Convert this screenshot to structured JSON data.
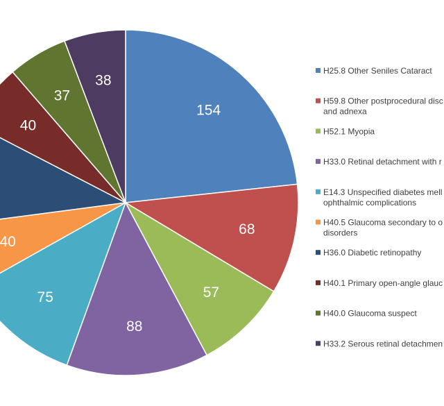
{
  "chart_data": {
    "type": "pie",
    "title": "",
    "series": [
      {
        "label": "H25.8 Other Seniles Cataract",
        "legend_lines": [
          "H25.8 Other Seniles Cataract"
        ],
        "value": 154,
        "color": "#4f81bd"
      },
      {
        "label": "H59.8 Other postprocedural disc… and adnexa",
        "legend_lines": [
          "H59.8 Other postprocedural disc",
          "and adnexa"
        ],
        "value": 68,
        "color": "#c0504d"
      },
      {
        "label": "H52.1 Myopia",
        "legend_lines": [
          "H52.1 Myopia"
        ],
        "value": 57,
        "color": "#9bbb59"
      },
      {
        "label": "H33.0 Retinal detachment with r",
        "legend_lines": [
          "H33.0 Retinal detachment with r"
        ],
        "value": 88,
        "color": "#8064a2"
      },
      {
        "label": "E14.3 Unspecified diabetes mell… ophthalmic complications",
        "legend_lines": [
          "E14.3 Unspecified diabetes mell",
          "ophthalmic complications"
        ],
        "value": 75,
        "color": "#4bacc6"
      },
      {
        "label": "H40.5 Glaucoma secondary to o… disorders",
        "legend_lines": [
          "H40.5 Glaucoma secondary to o",
          "disorders"
        ],
        "value": 40,
        "color": "#f79646"
      },
      {
        "label": "H36.0 Diabetic retinopathy",
        "legend_lines": [
          "H36.0 Diabetic retinopathy"
        ],
        "value": 64,
        "color": "#2c4d75"
      },
      {
        "label": "H40.1 Primary open-angle glauc",
        "legend_lines": [
          "H40.1 Primary open-angle glauc"
        ],
        "value": 40,
        "color": "#772c2a"
      },
      {
        "label": "H40.0 Glaucoma suspect",
        "legend_lines": [
          "H40.0 Glaucoma suspect"
        ],
        "value": 37,
        "color": "#5f7530"
      },
      {
        "label": "H33.2 Serous retinal detachmen",
        "legend_lines": [
          "H33.2 Serous retinal detachmen"
        ],
        "value": 38,
        "color": "#4d3b62"
      }
    ],
    "visible_data_labels": [
      "154",
      "68",
      "57",
      "88",
      "75",
      "40",
      "37",
      "38"
    ],
    "legend_position": "right",
    "start_angle_deg": 0,
    "direction": "clockwise"
  }
}
